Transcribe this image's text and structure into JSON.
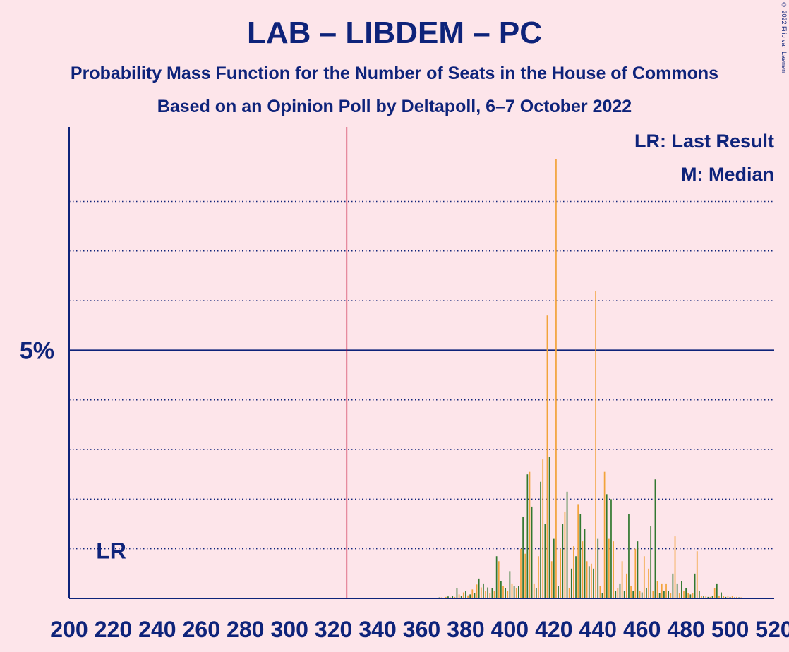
{
  "title": "LAB – LIBDEM – PC",
  "subtitle": "Probability Mass Function for the Number of Seats in the House of Commons",
  "subtitle2": "Based on an Opinion Poll by Deltapoll, 6–7 October 2022",
  "copyright": "© 2022 Filip van Laenen",
  "colors": {
    "background": "#FDE5EA",
    "text": "#0E237A",
    "majority_line": "#C4002B",
    "bar_green": "#317830",
    "bar_orange": "#F2A33B"
  },
  "chart_data": {
    "type": "bar",
    "title": "LAB – LIBDEM – PC",
    "x_range": [
      200,
      520
    ],
    "x_tick_labels": [
      "200",
      "220",
      "240",
      "260",
      "280",
      "300",
      "320",
      "340",
      "360",
      "380",
      "400",
      "420",
      "440",
      "460",
      "480",
      "500",
      "520"
    ],
    "x_ticks": [
      200,
      220,
      240,
      260,
      280,
      300,
      320,
      340,
      360,
      380,
      400,
      420,
      440,
      460,
      480,
      500,
      520
    ],
    "y_range": [
      0,
      9.5
    ],
    "y_tick_label": "5%",
    "y_tick_value": 5,
    "grid_values": [
      1,
      2,
      3,
      4,
      6,
      7,
      8
    ],
    "majority_line": 326,
    "last_result_label": "LR",
    "last_result_value": 202,
    "legend": [
      "LR: Last Result",
      "M: Median"
    ],
    "legend_placement": "top-right",
    "values": [
      [
        368,
        0.02
      ],
      [
        369,
        0.02
      ],
      [
        370,
        0.01
      ],
      [
        371,
        0.03
      ],
      [
        372,
        0.04
      ],
      [
        373,
        0.02
      ],
      [
        374,
        0.05
      ],
      [
        375,
        0.03
      ],
      [
        376,
        0.2
      ],
      [
        377,
        0.08
      ],
      [
        378,
        0.05
      ],
      [
        379,
        0.12
      ],
      [
        380,
        0.15
      ],
      [
        381,
        0.06
      ],
      [
        382,
        0.08
      ],
      [
        383,
        0.18
      ],
      [
        384,
        0.1
      ],
      [
        385,
        0.28
      ],
      [
        386,
        0.4
      ],
      [
        387,
        0.22
      ],
      [
        388,
        0.3
      ],
      [
        389,
        0.15
      ],
      [
        390,
        0.22
      ],
      [
        391,
        0.1
      ],
      [
        392,
        0.2
      ],
      [
        393,
        0.15
      ],
      [
        394,
        0.85
      ],
      [
        395,
        0.75
      ],
      [
        396,
        0.35
      ],
      [
        397,
        0.25
      ],
      [
        398,
        0.2
      ],
      [
        399,
        0.15
      ],
      [
        400,
        0.55
      ],
      [
        401,
        0.3
      ],
      [
        402,
        0.25
      ],
      [
        403,
        0.2
      ],
      [
        404,
        0.25
      ],
      [
        405,
        1.0
      ],
      [
        406,
        1.65
      ],
      [
        407,
        0.9
      ],
      [
        408,
        2.5
      ],
      [
        409,
        2.55
      ],
      [
        410,
        1.85
      ],
      [
        411,
        0.3
      ],
      [
        412,
        0.2
      ],
      [
        413,
        0.85
      ],
      [
        414,
        2.35
      ],
      [
        415,
        2.8
      ],
      [
        416,
        1.5
      ],
      [
        417,
        5.7
      ],
      [
        418,
        2.85
      ],
      [
        419,
        0.75
      ],
      [
        420,
        1.2
      ],
      [
        421,
        8.85
      ],
      [
        422,
        0.25
      ],
      [
        423,
        1.0
      ],
      [
        424,
        1.5
      ],
      [
        425,
        1.75
      ],
      [
        426,
        2.15
      ],
      [
        427,
        0.2
      ],
      [
        428,
        0.6
      ],
      [
        429,
        1.05
      ],
      [
        430,
        0.85
      ],
      [
        431,
        1.9
      ],
      [
        432,
        1.7
      ],
      [
        433,
        1.15
      ],
      [
        434,
        1.4
      ],
      [
        435,
        0.75
      ],
      [
        436,
        0.65
      ],
      [
        437,
        0.7
      ],
      [
        438,
        0.6
      ],
      [
        439,
        6.2
      ],
      [
        440,
        1.2
      ],
      [
        441,
        0.25
      ],
      [
        442,
        0.1
      ],
      [
        443,
        2.55
      ],
      [
        444,
        2.1
      ],
      [
        445,
        1.2
      ],
      [
        446,
        2.0
      ],
      [
        447,
        1.15
      ],
      [
        448,
        0.15
      ],
      [
        449,
        0.2
      ],
      [
        450,
        0.3
      ],
      [
        451,
        0.75
      ],
      [
        452,
        0.15
      ],
      [
        453,
        0.5
      ],
      [
        454,
        1.7
      ],
      [
        455,
        0.25
      ],
      [
        456,
        0.15
      ],
      [
        457,
        1.0
      ],
      [
        458,
        1.15
      ],
      [
        459,
        0.15
      ],
      [
        460,
        0.12
      ],
      [
        461,
        0.85
      ],
      [
        462,
        0.2
      ],
      [
        463,
        0.6
      ],
      [
        464,
        1.45
      ],
      [
        465,
        0.15
      ],
      [
        466,
        2.4
      ],
      [
        467,
        0.35
      ],
      [
        468,
        0.1
      ],
      [
        469,
        0.3
      ],
      [
        470,
        0.15
      ],
      [
        471,
        0.3
      ],
      [
        472,
        0.15
      ],
      [
        473,
        0.1
      ],
      [
        474,
        0.5
      ],
      [
        475,
        1.25
      ],
      [
        476,
        0.3
      ],
      [
        477,
        0.1
      ],
      [
        478,
        0.35
      ],
      [
        479,
        0.15
      ],
      [
        480,
        0.2
      ],
      [
        481,
        0.1
      ],
      [
        482,
        0.08
      ],
      [
        483,
        0.1
      ],
      [
        484,
        0.5
      ],
      [
        485,
        0.95
      ],
      [
        486,
        0.15
      ],
      [
        487,
        0.05
      ],
      [
        488,
        0.05
      ],
      [
        489,
        0.04
      ],
      [
        490,
        0.03
      ],
      [
        491,
        0.03
      ],
      [
        492,
        0.05
      ],
      [
        493,
        0.2
      ],
      [
        494,
        0.3
      ],
      [
        495,
        0.05
      ],
      [
        496,
        0.12
      ],
      [
        497,
        0.05
      ],
      [
        498,
        0.03
      ],
      [
        499,
        0.04
      ],
      [
        500,
        0.03
      ],
      [
        501,
        0.05
      ],
      [
        502,
        0.02
      ],
      [
        503,
        0.03
      ],
      [
        504,
        0.02
      ],
      [
        505,
        0.02
      ],
      [
        506,
        0.01
      ]
    ]
  }
}
